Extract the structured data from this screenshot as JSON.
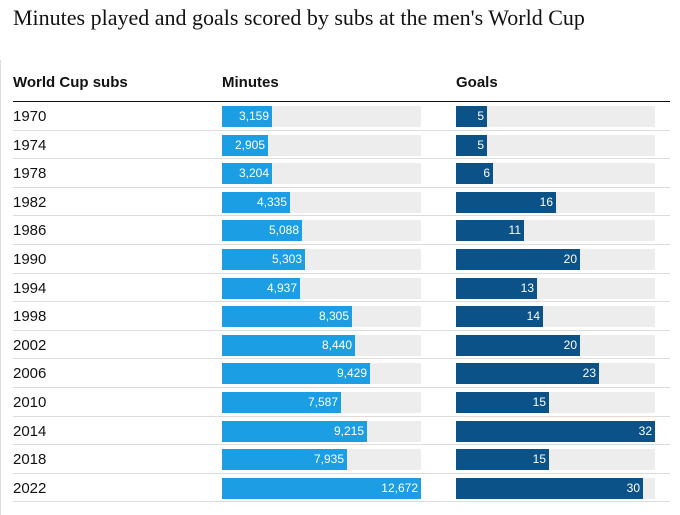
{
  "title": "Minutes played and goals scored by subs at the men's World Cup",
  "headers": {
    "year": "World Cup subs",
    "minutes": "Minutes",
    "goals": "Goals"
  },
  "colors": {
    "minutes_bar": "#1c9ee5",
    "goals_bar": "#0b5288",
    "track": "#ededed"
  },
  "chart_data": [
    {
      "type": "bar",
      "orientation": "horizontal",
      "title": "Minutes",
      "categories": [
        "1970",
        "1974",
        "1978",
        "1982",
        "1986",
        "1990",
        "1994",
        "1998",
        "2002",
        "2006",
        "2010",
        "2014",
        "2018",
        "2022"
      ],
      "values": [
        3159,
        2905,
        3204,
        4335,
        5088,
        5303,
        4937,
        8305,
        8440,
        9429,
        7587,
        9215,
        7935,
        12672
      ],
      "labels": [
        "3,159",
        "2,905",
        "3,204",
        "4,335",
        "5,088",
        "5,303",
        "4,937",
        "8,305",
        "8,440",
        "9,429",
        "7,587",
        "9,215",
        "7,935",
        "12,672"
      ],
      "xlim": [
        0,
        12672
      ]
    },
    {
      "type": "bar",
      "orientation": "horizontal",
      "title": "Goals",
      "categories": [
        "1970",
        "1974",
        "1978",
        "1982",
        "1986",
        "1990",
        "1994",
        "1998",
        "2002",
        "2006",
        "2010",
        "2014",
        "2018",
        "2022"
      ],
      "values": [
        5,
        5,
        6,
        16,
        11,
        20,
        13,
        14,
        20,
        23,
        15,
        32,
        15,
        30
      ],
      "labels": [
        "5",
        "5",
        "6",
        "16",
        "11",
        "20",
        "13",
        "14",
        "20",
        "23",
        "15",
        "32",
        "15",
        "30"
      ],
      "xlim": [
        0,
        32
      ]
    }
  ]
}
